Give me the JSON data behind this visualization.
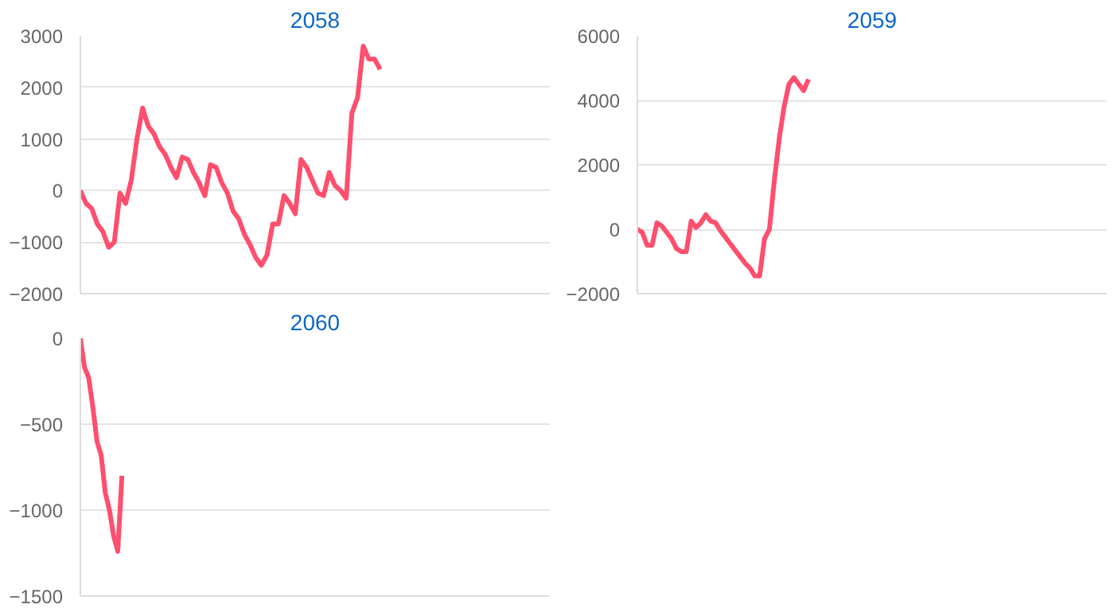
{
  "chart_data": [
    {
      "type": "line",
      "title": "2058",
      "categories": [
        null,
        null,
        null,
        null,
        null,
        null,
        null,
        null,
        null,
        null,
        null,
        null,
        null,
        null,
        null,
        null,
        null,
        null,
        null,
        null,
        null,
        null,
        null,
        null,
        null,
        null,
        null,
        null,
        null,
        null,
        null,
        null,
        null,
        null,
        null,
        null,
        null,
        null,
        null,
        null,
        null,
        null,
        null,
        null,
        null,
        null,
        null,
        null,
        null,
        null,
        null,
        null,
        null,
        null,
        null,
        null,
        null,
        null,
        null,
        null,
        null,
        null,
        null,
        null,
        null,
        null,
        null,
        null,
        null,
        null,
        null,
        null,
        null,
        null,
        null,
        null,
        null,
        null,
        null,
        null,
        null,
        null,
        null,
        null
      ],
      "series": [
        {
          "color": "#ff4f6e",
          "values": [
            0,
            -250,
            -350,
            -650,
            -800,
            -1100,
            -1000,
            -50,
            -250,
            200,
            1000,
            1600,
            1250,
            1100,
            850,
            700,
            450,
            250,
            650,
            600,
            350,
            150,
            -100,
            500,
            450,
            150,
            -50,
            -400,
            -550,
            -850,
            -1050,
            -1300,
            -1450,
            -1250,
            -650,
            -650,
            -100,
            -250,
            -450,
            600,
            450,
            200,
            -50,
            -100,
            350,
            100,
            0,
            -150,
            1500,
            1800,
            2800,
            2550,
            2550,
            2350,
            null,
            null,
            null,
            null,
            null,
            null,
            null,
            null,
            null,
            null,
            null,
            null,
            null,
            null,
            null,
            null,
            null,
            null,
            null,
            null,
            null,
            null,
            null,
            null,
            null,
            null,
            null,
            null,
            null,
            null
          ]
        }
      ],
      "ylim": [
        -2000,
        3000
      ],
      "yticks": [
        -2000,
        -1000,
        0,
        1000,
        2000,
        3000
      ],
      "grid": "y",
      "tick_labels": "y",
      "marker": "none",
      "line_style": "solid"
    },
    {
      "type": "line",
      "title": "2059",
      "categories": [
        null,
        null,
        null,
        null,
        null,
        null,
        null,
        null,
        null,
        null,
        null,
        null,
        null,
        null,
        null,
        null,
        null,
        null,
        null,
        null,
        null,
        null,
        null,
        null,
        null,
        null,
        null,
        null,
        null,
        null,
        null,
        null,
        null,
        null,
        null,
        null,
        null,
        null,
        null,
        null,
        null,
        null,
        null,
        null,
        null,
        null,
        null,
        null,
        null,
        null,
        null,
        null,
        null,
        null,
        null,
        null,
        null,
        null,
        null,
        null,
        null,
        null,
        null,
        null,
        null,
        null,
        null,
        null,
        null,
        null,
        null,
        null,
        null,
        null,
        null,
        null,
        null,
        null,
        null,
        null,
        null,
        null,
        null,
        null,
        null,
        null,
        null,
        null,
        null,
        null,
        null,
        null,
        null,
        null,
        null,
        null,
        null
      ],
      "series": [
        {
          "color": "#ff4f6e",
          "values": [
            0,
            -100,
            -500,
            -500,
            200,
            100,
            -100,
            -300,
            -600,
            -700,
            -700,
            250,
            50,
            200,
            450,
            250,
            200,
            -50,
            -250,
            -450,
            -650,
            -850,
            -1050,
            -1200,
            -1450,
            -1450,
            -300,
            0,
            1500,
            2800,
            3800,
            4500,
            4700,
            4500,
            4300,
            4650,
            null,
            null,
            null,
            null,
            null,
            null,
            null,
            null,
            null,
            null,
            null,
            null,
            null,
            null,
            null,
            null,
            null,
            null,
            null,
            null,
            null,
            null,
            null,
            null,
            null,
            null,
            null,
            null,
            null,
            null,
            null,
            null,
            null,
            null,
            null,
            null,
            null,
            null,
            null,
            null,
            null,
            null,
            null,
            null,
            null,
            null,
            null,
            null,
            null,
            null,
            null,
            null,
            null,
            null,
            null,
            null,
            null,
            null,
            null,
            null,
            null
          ]
        }
      ],
      "ylim": [
        -2000,
        6000
      ],
      "yticks": [
        -2000,
        0,
        2000,
        4000,
        6000
      ],
      "grid": "y",
      "tick_labels": "y",
      "marker": "none",
      "line_style": "solid"
    },
    {
      "type": "line",
      "title": "2060",
      "categories": [
        null,
        null,
        null,
        null,
        null,
        null,
        null,
        null,
        null,
        null,
        null,
        null,
        null,
        null,
        null,
        null,
        null,
        null,
        null,
        null,
        null,
        null,
        null,
        null,
        null,
        null,
        null,
        null,
        null,
        null,
        null,
        null,
        null,
        null,
        null,
        null,
        null,
        null,
        null,
        null,
        null,
        null,
        null,
        null,
        null,
        null,
        null,
        null,
        null,
        null,
        null,
        null,
        null,
        null,
        null,
        null,
        null,
        null,
        null,
        null,
        null,
        null,
        null,
        null,
        null,
        null,
        null,
        null,
        null,
        null,
        null,
        null,
        null,
        null,
        null,
        null,
        null,
        null,
        null,
        null,
        null,
        null,
        null,
        null,
        null,
        null,
        null,
        null,
        null,
        null,
        null,
        null,
        null,
        null,
        null,
        null,
        null,
        null,
        null,
        null,
        null,
        null,
        null,
        null,
        null,
        null,
        null,
        null,
        null,
        null,
        null,
        null,
        null,
        null
      ],
      "series": [
        {
          "color": "#ff4f6e",
          "values": [
            0,
            -170,
            -230,
            -400,
            -600,
            -680,
            -900,
            -1000,
            -1150,
            -1240,
            -800,
            null,
            null,
            null,
            null,
            null,
            null,
            null,
            null,
            null,
            null,
            null,
            null,
            null,
            null,
            null,
            null,
            null,
            null,
            null,
            null,
            null,
            null,
            null,
            null,
            null,
            null,
            null,
            null,
            null,
            null,
            null,
            null,
            null,
            null,
            null,
            null,
            null,
            null,
            null,
            null,
            null,
            null,
            null,
            null,
            null,
            null,
            null,
            null,
            null,
            null,
            null,
            null,
            null,
            null,
            null,
            null,
            null,
            null,
            null,
            null,
            null,
            null,
            null,
            null,
            null,
            null,
            null,
            null,
            null,
            null,
            null,
            null,
            null,
            null,
            null,
            null,
            null,
            null,
            null,
            null,
            null,
            null,
            null,
            null,
            null,
            null,
            null,
            null,
            null,
            null,
            null,
            null,
            null,
            null,
            null,
            null,
            null,
            null,
            null,
            null,
            null,
            null,
            null
          ]
        }
      ],
      "ylim": [
        -1500,
        0
      ],
      "yticks": [
        -1500,
        -1000,
        -500,
        0
      ],
      "grid": "y",
      "tick_labels": "y",
      "marker": "none",
      "line_style": "solid"
    }
  ]
}
